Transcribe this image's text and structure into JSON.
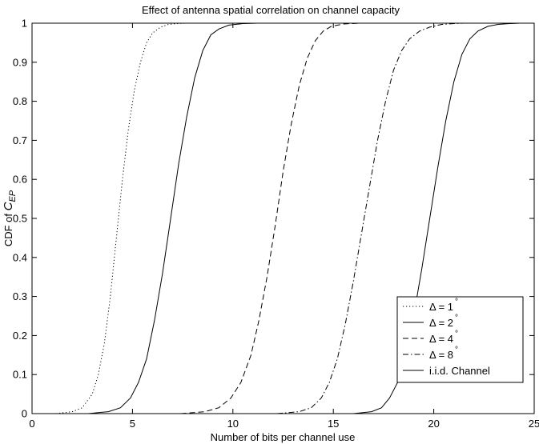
{
  "chart_data": {
    "type": "line",
    "title": "Effect of antenna spatial correlation on channel capacity",
    "xlabel": "Number of bits per channel use",
    "ylabel": {
      "prefix": "CDF of ",
      "symbol": "C",
      "subscript": "EP"
    },
    "xlim": [
      0,
      25
    ],
    "ylim": [
      0,
      1
    ],
    "xticks": [
      0,
      5,
      10,
      15,
      20,
      25
    ],
    "yticks": [
      0,
      0.1,
      0.2,
      0.3,
      0.4,
      0.5,
      0.6,
      0.7,
      0.8,
      0.9,
      1
    ],
    "grid": false,
    "legend_position": "bottom-right",
    "series": [
      {
        "name": "Δ = 1°",
        "label_main": "Δ = 1",
        "label_sup": "°",
        "line_style": "dotted",
        "x": [
          1.2,
          2.0,
          2.5,
          3.0,
          3.3,
          3.6,
          3.9,
          4.2,
          4.5,
          4.8,
          5.1,
          5.4,
          5.7,
          6.0,
          6.4,
          6.8,
          7.2,
          7.6
        ],
        "y": [
          0.0,
          0.005,
          0.015,
          0.05,
          0.1,
          0.18,
          0.3,
          0.45,
          0.6,
          0.73,
          0.83,
          0.9,
          0.95,
          0.975,
          0.99,
          0.997,
          0.999,
          1.0
        ]
      },
      {
        "name": "Δ = 2°",
        "label_main": "Δ = 2",
        "label_sup": "°",
        "line_style": "solid",
        "x": [
          2.8,
          3.8,
          4.4,
          4.9,
          5.3,
          5.7,
          6.1,
          6.5,
          6.9,
          7.3,
          7.7,
          8.1,
          8.5,
          8.9,
          9.3,
          9.8,
          10.5,
          11.2
        ],
        "y": [
          0.0,
          0.005,
          0.015,
          0.04,
          0.08,
          0.14,
          0.24,
          0.36,
          0.5,
          0.64,
          0.76,
          0.86,
          0.93,
          0.97,
          0.985,
          0.995,
          0.999,
          1.0
        ]
      },
      {
        "name": "Δ = 4°",
        "label_main": "Δ = 4",
        "label_sup": "°",
        "line_style": "dashed",
        "x": [
          7.4,
          8.6,
          9.3,
          9.9,
          10.4,
          10.9,
          11.3,
          11.7,
          12.1,
          12.5,
          12.9,
          13.3,
          13.7,
          14.1,
          14.5,
          14.9,
          15.5,
          16.3
        ],
        "y": [
          0.0,
          0.005,
          0.015,
          0.04,
          0.08,
          0.15,
          0.24,
          0.35,
          0.48,
          0.62,
          0.74,
          0.84,
          0.91,
          0.955,
          0.98,
          0.992,
          0.998,
          1.0
        ]
      },
      {
        "name": "Δ = 8°",
        "label_main": "Δ = 8",
        "label_sup": "°",
        "line_style": "dashdot",
        "x": [
          12.2,
          13.3,
          13.9,
          14.4,
          14.8,
          15.2,
          15.6,
          16.0,
          16.4,
          16.8,
          17.2,
          17.6,
          18.0,
          18.4,
          18.8,
          19.3,
          19.8,
          20.4,
          21.0,
          21.5
        ],
        "y": [
          0.0,
          0.005,
          0.015,
          0.04,
          0.08,
          0.14,
          0.23,
          0.34,
          0.46,
          0.58,
          0.7,
          0.8,
          0.88,
          0.93,
          0.96,
          0.98,
          0.99,
          0.997,
          0.999,
          1.0
        ]
      },
      {
        "name": "i.i.d. Channel",
        "label_main": "i.i.d. Channel",
        "label_sup": "",
        "line_style": "solid",
        "x": [
          16.0,
          16.9,
          17.4,
          17.8,
          18.2,
          18.6,
          19.0,
          19.4,
          19.8,
          20.2,
          20.6,
          21.0,
          21.4,
          21.8,
          22.2,
          22.7,
          23.2,
          23.8,
          24.3
        ],
        "y": [
          0.0,
          0.005,
          0.015,
          0.04,
          0.08,
          0.15,
          0.25,
          0.37,
          0.5,
          0.63,
          0.75,
          0.85,
          0.92,
          0.96,
          0.98,
          0.992,
          0.997,
          0.999,
          1.0
        ]
      }
    ]
  }
}
